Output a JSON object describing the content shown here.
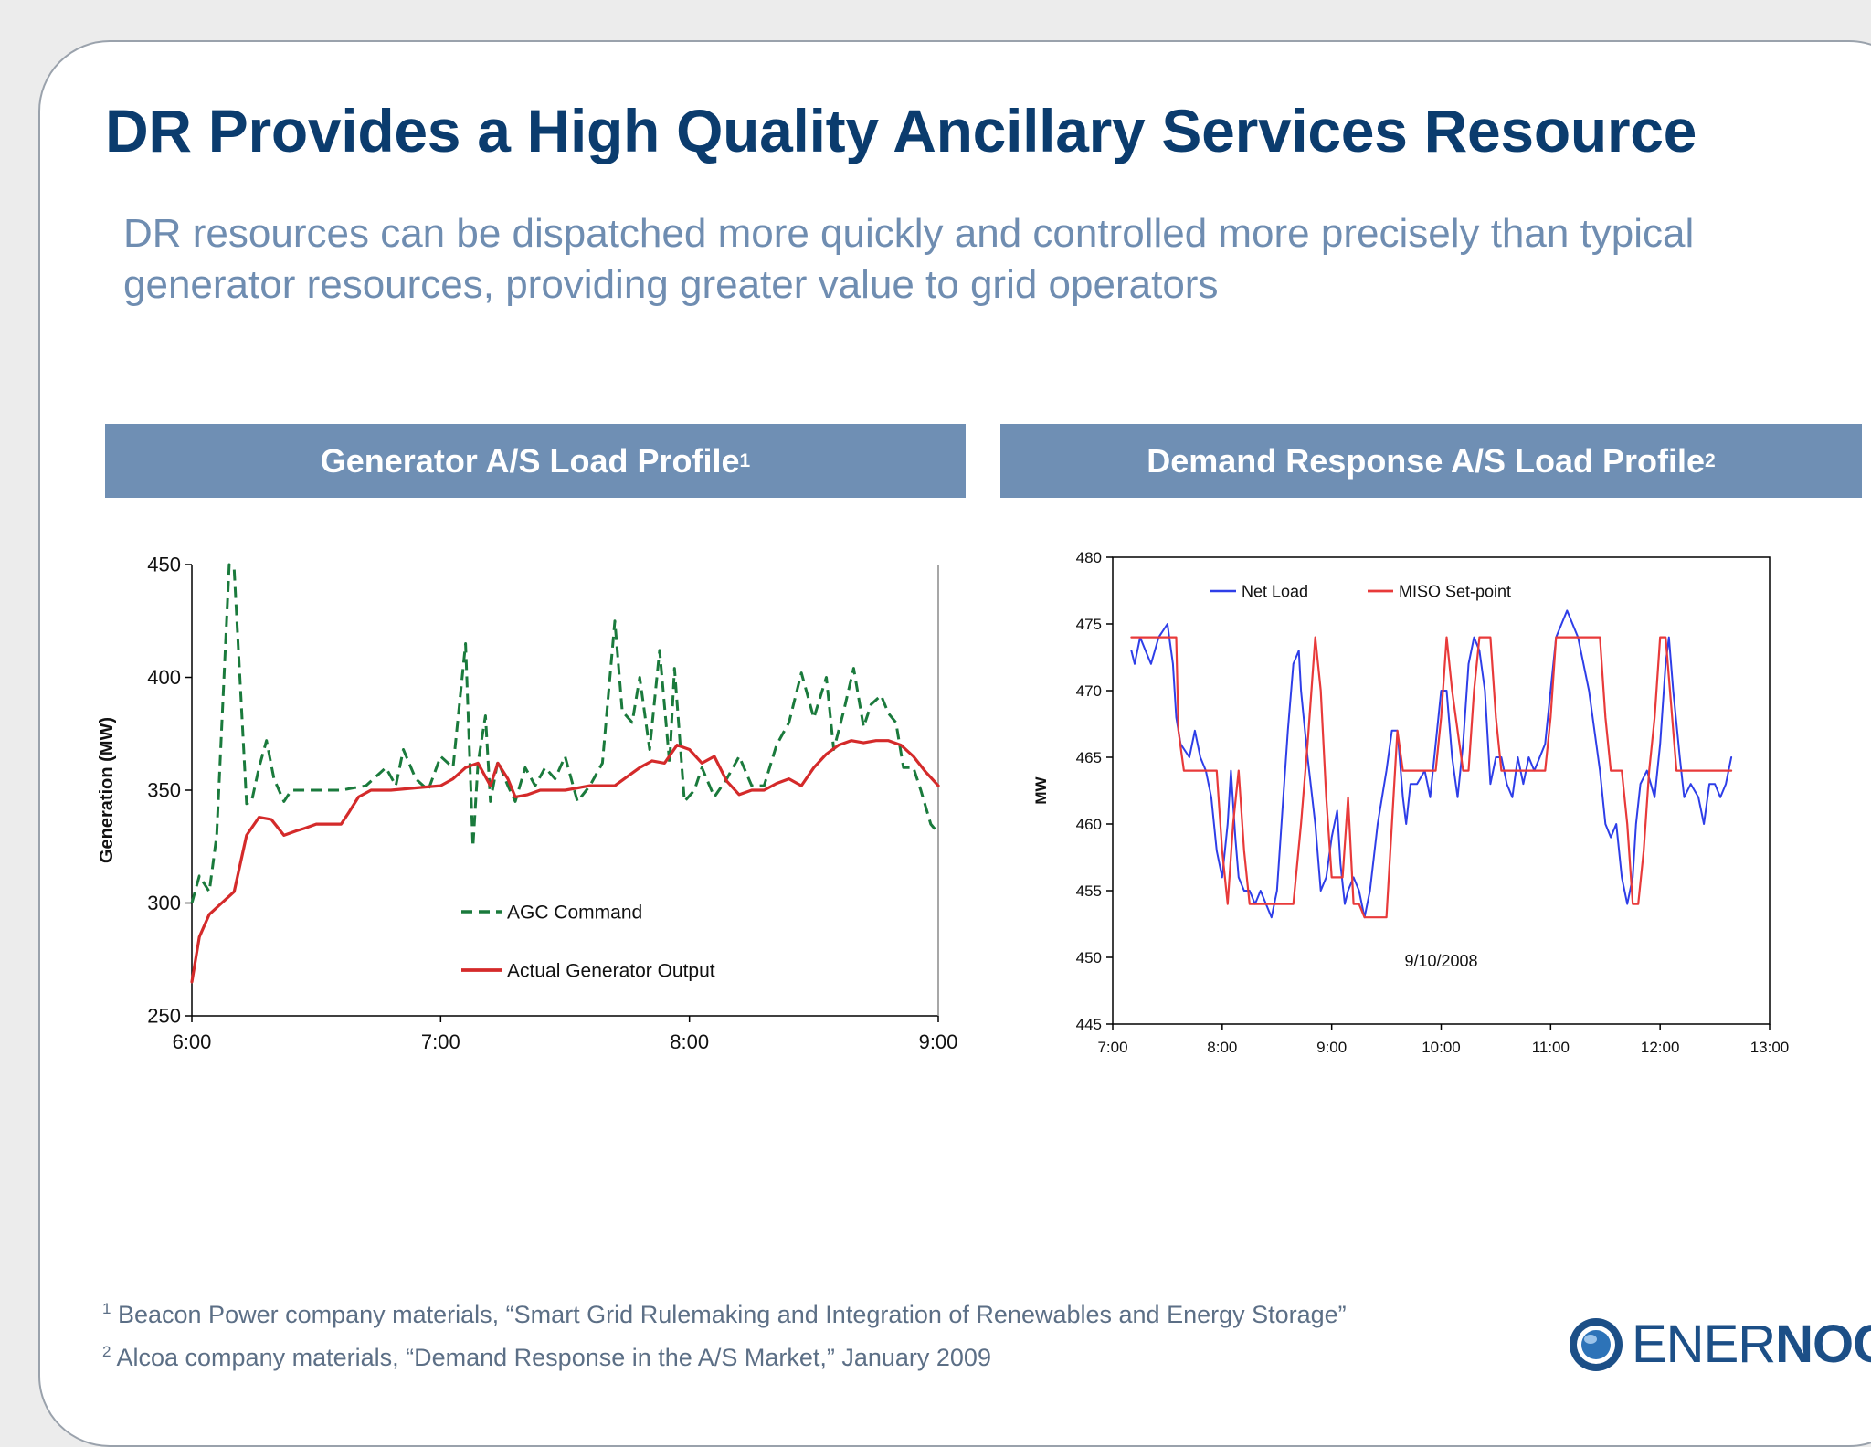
{
  "title": "DR Provides a High Quality Ancillary Services Resource",
  "subtitle": "DR resources can be dispatched more quickly and controlled more precisely than typical generator resources, providing greater value to grid operators",
  "colors": {
    "title": "#0b3c6e",
    "subtitle": "#6f8db1",
    "header_bg": "#6f8fb4",
    "agc_green": "#1a7a3c",
    "actual_red": "#d42a2a",
    "net_load_blue": "#2e3ee8",
    "miso_red": "#e83a3a"
  },
  "panels": {
    "left": {
      "header": "Generator A/S Load Profile",
      "sup": "1"
    },
    "right": {
      "header": "Demand Response A/S Load Profile",
      "sup": "2"
    }
  },
  "footnotes": [
    {
      "sup": "1",
      "text": "Beacon Power company materials, “Smart Grid Rulemaking and Integration of  Renewables and Energy Storage”"
    },
    {
      "sup": "2",
      "text": "Alcoa company materials, “Demand Response in the A/S Market,” January 2009"
    }
  ],
  "logo": {
    "name_light": "ENER",
    "name_bold": "NOC",
    "icon": "enernoc-logo-icon"
  },
  "chart_data": [
    {
      "type": "line",
      "ylabel": "Generation (MW)",
      "xlabel": "",
      "xlim": [
        6,
        9
      ],
      "ylim": [
        250,
        450
      ],
      "xticks": [
        6,
        7,
        8,
        9
      ],
      "xtick_labels": [
        "6:00",
        "7:00",
        "8:00",
        "9:00"
      ],
      "yticks": [
        250,
        300,
        350,
        400,
        450
      ],
      "ytick_labels": [
        "250",
        "300",
        "350",
        "400",
        "450"
      ],
      "legend_position": "center",
      "series": [
        {
          "name": "AGC Command",
          "style": "dashed",
          "color": "#1a7a3c",
          "x": [
            6.0,
            6.03,
            6.07,
            6.1,
            6.15,
            6.17,
            6.22,
            6.24,
            6.27,
            6.3,
            6.33,
            6.37,
            6.4,
            6.44,
            6.48,
            6.5,
            6.6,
            6.7,
            6.78,
            6.82,
            6.85,
            6.9,
            6.95,
            7.0,
            7.05,
            7.1,
            7.13,
            7.15,
            7.18,
            7.2,
            7.23,
            7.27,
            7.3,
            7.34,
            7.38,
            7.42,
            7.46,
            7.5,
            7.55,
            7.6,
            7.65,
            7.7,
            7.73,
            7.77,
            7.8,
            7.84,
            7.88,
            7.92,
            7.94,
            7.98,
            8.02,
            8.05,
            8.1,
            8.15,
            8.2,
            8.25,
            8.3,
            8.35,
            8.4,
            8.45,
            8.5,
            8.55,
            8.58,
            8.62,
            8.66,
            8.7,
            8.73,
            8.77,
            8.8,
            8.83,
            8.86,
            8.9,
            8.93,
            8.97,
            9.0
          ],
          "y": [
            300,
            312,
            305,
            330,
            450,
            448,
            344,
            345,
            360,
            372,
            355,
            345,
            350,
            350,
            350,
            350,
            350,
            352,
            360,
            352,
            368,
            355,
            350,
            365,
            360,
            415,
            325,
            362,
            383,
            345,
            363,
            352,
            345,
            360,
            352,
            360,
            355,
            365,
            345,
            352,
            362,
            425,
            385,
            380,
            400,
            368,
            412,
            362,
            404,
            345,
            350,
            360,
            347,
            355,
            365,
            352,
            352,
            370,
            380,
            402,
            382,
            400,
            368,
            385,
            404,
            378,
            388,
            392,
            384,
            380,
            360,
            360,
            350,
            335,
            331
          ]
        },
        {
          "name": "Actual Generator Output",
          "style": "solid",
          "color": "#d42a2a",
          "x": [
            6.0,
            6.03,
            6.07,
            6.12,
            6.17,
            6.22,
            6.27,
            6.32,
            6.37,
            6.42,
            6.45,
            6.5,
            6.6,
            6.63,
            6.67,
            6.72,
            6.8,
            6.9,
            7.0,
            7.05,
            7.1,
            7.15,
            7.2,
            7.23,
            7.27,
            7.3,
            7.35,
            7.4,
            7.5,
            7.6,
            7.7,
            7.75,
            7.8,
            7.85,
            7.9,
            7.95,
            8.0,
            8.05,
            8.1,
            8.15,
            8.2,
            8.25,
            8.3,
            8.35,
            8.4,
            8.45,
            8.5,
            8.55,
            8.6,
            8.65,
            8.7,
            8.75,
            8.8,
            8.85,
            8.9,
            8.95,
            9.0
          ],
          "y": [
            265,
            285,
            295,
            300,
            305,
            330,
            338,
            337,
            330,
            332,
            333,
            335,
            335,
            340,
            347,
            350,
            350,
            351,
            352,
            355,
            360,
            362,
            352,
            362,
            355,
            347,
            348,
            350,
            350,
            352,
            352,
            356,
            360,
            363,
            362,
            370,
            368,
            362,
            365,
            354,
            348,
            350,
            350,
            353,
            355,
            352,
            360,
            366,
            370,
            372,
            371,
            372,
            372,
            370,
            365,
            358,
            352
          ]
        }
      ]
    },
    {
      "type": "line",
      "ylabel": "MW",
      "xlabel": "",
      "xlim": [
        7,
        13
      ],
      "ylim": [
        445,
        480
      ],
      "xticks": [
        7,
        8,
        9,
        10,
        11,
        12,
        13
      ],
      "xtick_labels": [
        "7:00",
        "8:00",
        "9:00",
        "10:00",
        "11:00",
        "12:00",
        "13:00"
      ],
      "yticks": [
        445,
        450,
        455,
        460,
        465,
        470,
        475,
        480
      ],
      "ytick_labels": [
        "445",
        "450",
        "455",
        "460",
        "465",
        "470",
        "475",
        "480"
      ],
      "annotation": "9/10/2008",
      "legend_position": "top",
      "series": [
        {
          "name": "Net Load",
          "color": "#2e3ee8",
          "x": [
            7.17,
            7.2,
            7.25,
            7.3,
            7.35,
            7.42,
            7.5,
            7.55,
            7.58,
            7.62,
            7.7,
            7.75,
            7.8,
            7.85,
            7.9,
            7.95,
            8.0,
            8.05,
            8.08,
            8.12,
            8.15,
            8.2,
            8.25,
            8.3,
            8.35,
            8.4,
            8.45,
            8.5,
            8.55,
            8.6,
            8.65,
            8.7,
            8.72,
            8.78,
            8.85,
            8.9,
            8.95,
            9.0,
            9.05,
            9.08,
            9.12,
            9.15,
            9.2,
            9.25,
            9.3,
            9.35,
            9.42,
            9.5,
            9.55,
            9.6,
            9.65,
            9.68,
            9.72,
            9.78,
            9.85,
            9.9,
            9.95,
            10.0,
            10.05,
            10.1,
            10.15,
            10.2,
            10.25,
            10.3,
            10.35,
            10.4,
            10.45,
            10.5,
            10.55,
            10.6,
            10.65,
            10.7,
            10.75,
            10.8,
            10.85,
            10.9,
            10.95,
            11.0,
            11.05,
            11.1,
            11.15,
            11.2,
            11.25,
            11.3,
            11.35,
            11.4,
            11.45,
            11.5,
            11.55,
            11.6,
            11.65,
            11.7,
            11.75,
            11.78,
            11.82,
            11.88,
            11.95,
            12.0,
            12.05,
            12.08,
            12.12,
            12.18,
            12.22,
            12.28,
            12.35,
            12.4,
            12.45,
            12.5,
            12.55,
            12.6,
            12.65
          ],
          "y": [
            473,
            472,
            474,
            473,
            472,
            474,
            475,
            472,
            468,
            466,
            465,
            467,
            465,
            464,
            462,
            458,
            456,
            460,
            464,
            459,
            456,
            455,
            455,
            454,
            455,
            454,
            453,
            455,
            461,
            467,
            472,
            473,
            470,
            465,
            460,
            455,
            456,
            459,
            461,
            457,
            454,
            455,
            456,
            455,
            453,
            455,
            460,
            464,
            467,
            467,
            462,
            460,
            463,
            463,
            464,
            462,
            466,
            470,
            470,
            465,
            462,
            466,
            472,
            474,
            473,
            470,
            463,
            465,
            465,
            463,
            462,
            465,
            463,
            465,
            464,
            465,
            466,
            470,
            474,
            475,
            476,
            475,
            474,
            472,
            470,
            467,
            464,
            460,
            459,
            460,
            456,
            454,
            456,
            460,
            463,
            464,
            462,
            466,
            472,
            474,
            470,
            465,
            462,
            463,
            462,
            460,
            463,
            463,
            462,
            463,
            465
          ]
        },
        {
          "name": "MISO Set-point",
          "color": "#e83a3a",
          "x": [
            7.17,
            7.58,
            7.6,
            7.65,
            7.7,
            7.95,
            8.0,
            8.05,
            8.1,
            8.15,
            8.2,
            8.25,
            8.3,
            8.35,
            8.65,
            8.72,
            8.78,
            8.85,
            8.9,
            8.95,
            9.0,
            9.1,
            9.15,
            9.2,
            9.25,
            9.3,
            9.35,
            9.5,
            9.6,
            9.65,
            9.7,
            9.75,
            9.8,
            9.85,
            9.95,
            10.0,
            10.05,
            10.1,
            10.2,
            10.25,
            10.3,
            10.35,
            10.45,
            10.5,
            10.55,
            10.6,
            10.85,
            10.95,
            11.0,
            11.05,
            11.45,
            11.5,
            11.55,
            11.6,
            11.65,
            11.7,
            11.75,
            11.8,
            11.85,
            11.9,
            11.95,
            12.0,
            12.05,
            12.15,
            12.2,
            12.3,
            12.65
          ],
          "y": [
            474,
            474,
            467,
            464,
            464,
            464,
            458,
            454,
            460,
            464,
            458,
            454,
            454,
            454,
            454,
            460,
            466,
            474,
            470,
            462,
            456,
            456,
            462,
            454,
            454,
            453,
            453,
            453,
            467,
            464,
            464,
            464,
            464,
            464,
            464,
            468,
            474,
            470,
            464,
            464,
            470,
            474,
            474,
            468,
            464,
            464,
            464,
            464,
            468,
            474,
            474,
            468,
            464,
            464,
            464,
            460,
            454,
            454,
            458,
            464,
            468,
            474,
            474,
            464,
            464,
            464,
            464
          ]
        }
      ]
    }
  ]
}
